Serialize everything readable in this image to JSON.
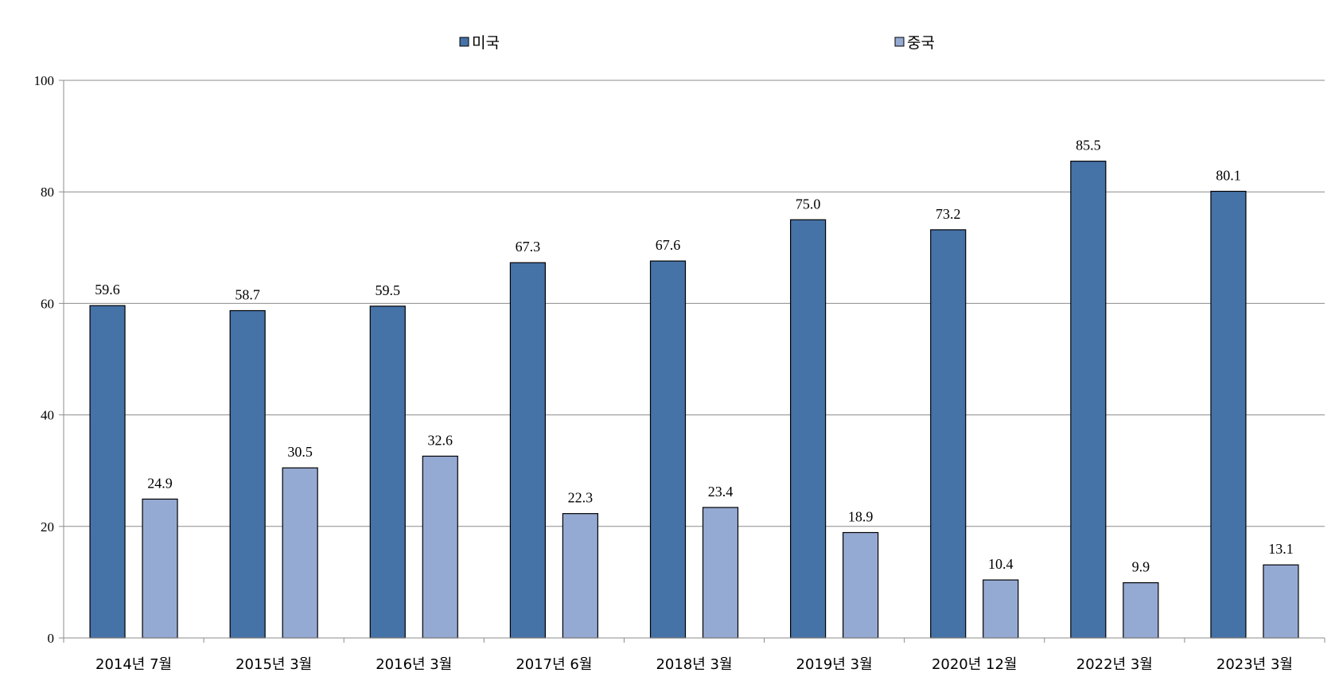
{
  "chart_data": {
    "type": "bar",
    "categories": [
      "2014년 7월",
      "2015년 3월",
      "2016년 3월",
      "2017년 6월",
      "2018년 3월",
      "2019년 3월",
      "2020년 12월",
      "2022년 3월",
      "2023년 3월"
    ],
    "series": [
      {
        "name": "미국",
        "color": "#4572A7",
        "values": [
          59.6,
          58.7,
          59.5,
          67.3,
          67.6,
          75.0,
          73.2,
          85.5,
          80.1
        ]
      },
      {
        "name": "중국",
        "color": "#95AAD3",
        "values": [
          24.9,
          30.5,
          32.6,
          22.3,
          23.4,
          18.9,
          10.4,
          9.9,
          13.1
        ]
      }
    ],
    "ylim": [
      0,
      100
    ],
    "yticks": [
      0,
      20,
      40,
      60,
      80,
      100
    ],
    "grid": true,
    "legend_position": "top-center",
    "data_labels": true,
    "title": "",
    "xlabel": "",
    "ylabel": ""
  }
}
